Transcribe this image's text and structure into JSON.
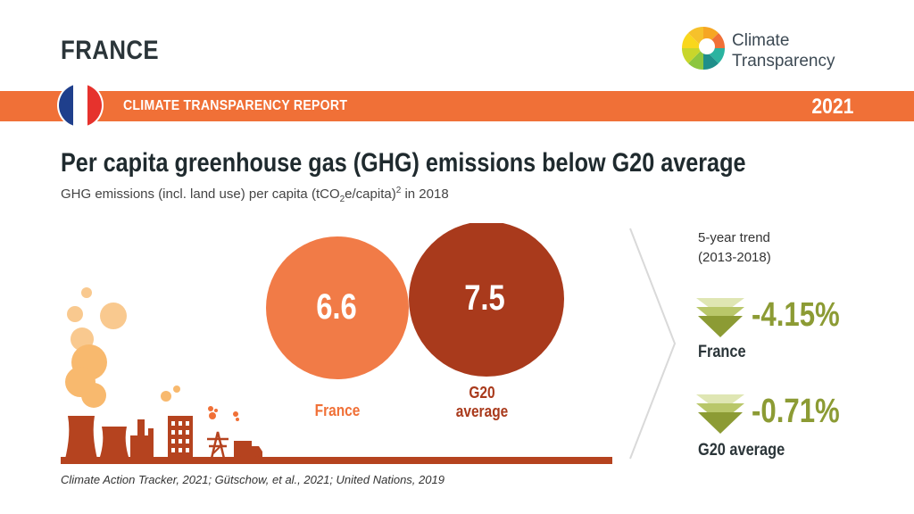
{
  "header": {
    "country": "FRANCE",
    "logo_line1": "Climate",
    "logo_line2": "Transparency",
    "banner_title": "CLIMATE TRANSPARENCY REPORT",
    "year": "2021"
  },
  "main": {
    "headline": "Per capita greenhouse gas (GHG) emissions below G20 average",
    "subtitle_part1": "GHG emissions (incl. land use) per capita (tCO",
    "subtitle_sub": "2",
    "subtitle_part2": "e/capita)",
    "subtitle_sup": "2",
    "subtitle_part3": " in 2018"
  },
  "comparison": {
    "france_value": "6.6",
    "france_label": "France",
    "g20_value": "7.5",
    "g20_label_line1": "G20",
    "g20_label_line2": "average"
  },
  "trend": {
    "title_line1": "5-year trend",
    "title_line2": "(2013-2018)",
    "france_value": "-4.15%",
    "france_label": "France",
    "g20_value": "-0.71%",
    "g20_label": "G20 average"
  },
  "footer": {
    "source": "Climate Action Tracker, 2021; Gütschow, et al., 2021; United Nations, 2019"
  },
  "colors": {
    "orange": "#f07037",
    "dark_red": "#a93a1c",
    "olive": "#8c9b34",
    "dark_text": "#2b3539"
  },
  "icons": [
    "france-flag-icon",
    "climate-transparency-logo-icon",
    "factory-illustration-icon",
    "down-trend-icon"
  ]
}
